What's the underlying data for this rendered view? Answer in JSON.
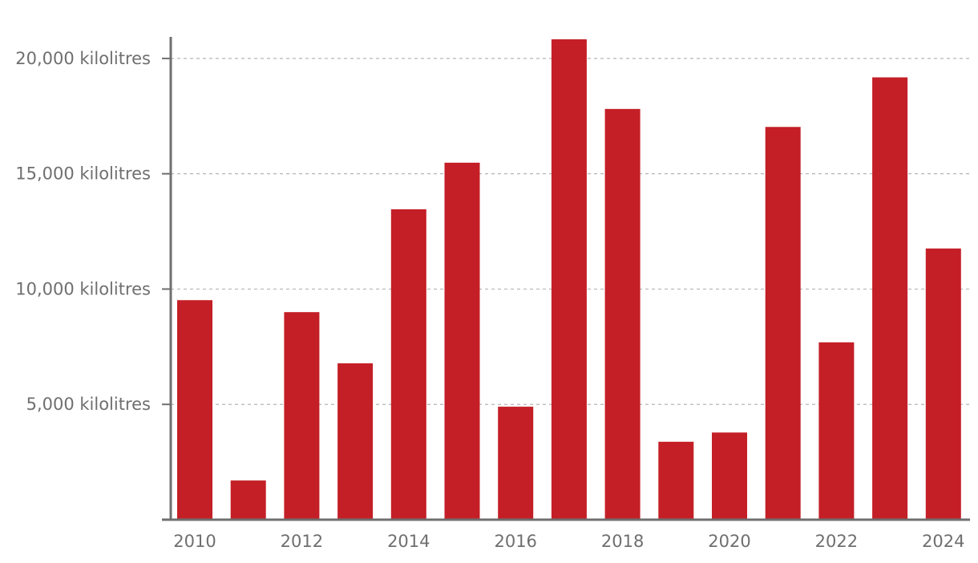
{
  "chart_data": {
    "type": "bar",
    "title": "",
    "xlabel": "",
    "ylabel": "",
    "categories": [
      "2010",
      "2011",
      "2012",
      "2013",
      "2014",
      "2015",
      "2016",
      "2017",
      "2018",
      "2019",
      "2020",
      "2021",
      "2022",
      "2023",
      "2024"
    ],
    "values": [
      9520,
      1700,
      9000,
      6780,
      13460,
      15480,
      4900,
      20830,
      17810,
      3380,
      3780,
      17030,
      7690,
      19180,
      11760
    ],
    "ylim": [
      0,
      20900
    ],
    "y_ticks": [
      5000,
      10000,
      15000,
      20000
    ],
    "y_tick_labels": [
      "5,000 kilolitres",
      "10,000 kilolitres",
      "15,000 kilolitres",
      "20,000 kilolitres"
    ],
    "x_tick_labels": [
      "2010",
      "2012",
      "2014",
      "2016",
      "2018",
      "2020",
      "2022",
      "2024"
    ],
    "grid": "horizontal dashed",
    "bar_color": "#c41f26",
    "axis_color": "#6f6f6f",
    "grid_color": "#b5b5b5"
  }
}
